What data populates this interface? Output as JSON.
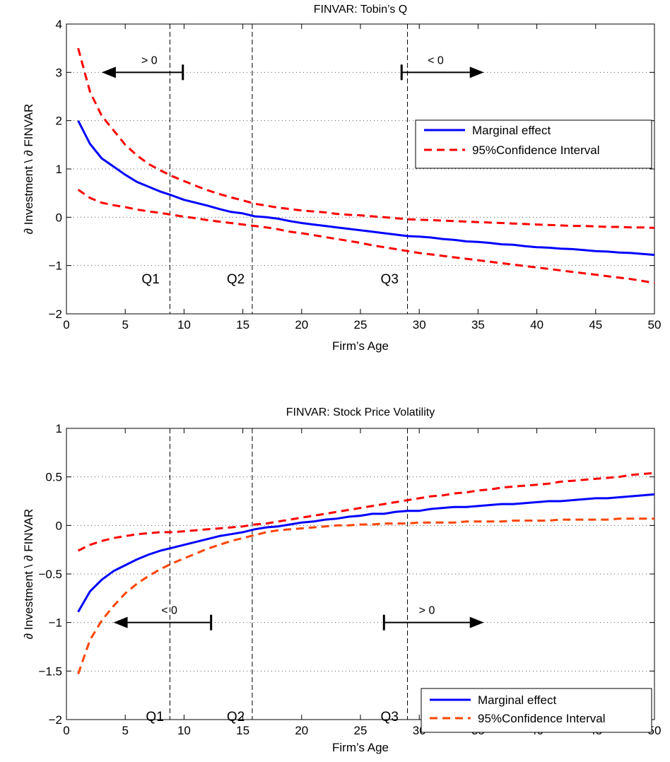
{
  "chart_data": [
    {
      "type": "line",
      "title": "FINVAR: Tobin’s Q",
      "xlabel": "Firm’s Age",
      "ylabel": "∂ Investment \\ ∂ FINVAR",
      "xlim": [
        0,
        50
      ],
      "ylim": [
        -2,
        4
      ],
      "xticks": [
        0,
        5,
        10,
        15,
        20,
        25,
        30,
        35,
        40,
        45,
        50
      ],
      "yticks": [
        -2,
        -1,
        0,
        1,
        2,
        3,
        4
      ],
      "grid": "horizontal dotted",
      "legend_position": "right",
      "x": [
        1,
        2,
        3,
        4,
        5,
        6,
        7,
        8,
        9,
        10,
        11,
        12,
        13,
        14,
        15,
        16,
        17,
        18,
        19,
        20,
        21,
        22,
        23,
        24,
        25,
        26,
        27,
        28,
        29,
        30,
        31,
        32,
        33,
        34,
        35,
        36,
        37,
        38,
        39,
        40,
        41,
        42,
        43,
        44,
        45,
        46,
        47,
        48,
        49,
        50
      ],
      "series": [
        {
          "name": "Marginal effect",
          "color": "#0000ff",
          "dash": "solid",
          "values": [
            2.0,
            1.52,
            1.22,
            1.05,
            0.88,
            0.73,
            0.63,
            0.53,
            0.45,
            0.36,
            0.3,
            0.24,
            0.17,
            0.11,
            0.08,
            0.02,
            0.0,
            -0.03,
            -0.08,
            -0.12,
            -0.15,
            -0.18,
            -0.21,
            -0.24,
            -0.27,
            -0.3,
            -0.33,
            -0.36,
            -0.39,
            -0.4,
            -0.42,
            -0.45,
            -0.47,
            -0.5,
            -0.51,
            -0.53,
            -0.56,
            -0.57,
            -0.6,
            -0.62,
            -0.63,
            -0.65,
            -0.66,
            -0.68,
            -0.7,
            -0.71,
            -0.73,
            -0.74,
            -0.76,
            -0.78
          ]
        },
        {
          "name": "95%Confidence Interval",
          "color": "#ff0000",
          "dash": "dashed",
          "values": [
            3.5,
            2.6,
            2.1,
            1.8,
            1.5,
            1.28,
            1.1,
            0.97,
            0.85,
            0.75,
            0.65,
            0.56,
            0.48,
            0.41,
            0.35,
            0.28,
            0.24,
            0.2,
            0.17,
            0.14,
            0.12,
            0.1,
            0.07,
            0.05,
            0.04,
            0.02,
            0.0,
            -0.02,
            -0.04,
            -0.05,
            -0.06,
            -0.07,
            -0.08,
            -0.09,
            -0.1,
            -0.11,
            -0.12,
            -0.13,
            -0.14,
            -0.15,
            -0.16,
            -0.17,
            -0.18,
            -0.18,
            -0.19,
            -0.2,
            -0.2,
            -0.21,
            -0.21,
            -0.22
          ]
        },
        {
          "name": "",
          "color": "#ff0000",
          "dash": "dashed",
          "values": [
            0.57,
            0.4,
            0.3,
            0.25,
            0.21,
            0.16,
            0.12,
            0.09,
            0.05,
            0.01,
            -0.02,
            -0.06,
            -0.09,
            -0.12,
            -0.15,
            -0.18,
            -0.21,
            -0.25,
            -0.3,
            -0.33,
            -0.37,
            -0.41,
            -0.45,
            -0.49,
            -0.53,
            -0.58,
            -0.62,
            -0.66,
            -0.7,
            -0.74,
            -0.77,
            -0.8,
            -0.83,
            -0.86,
            -0.89,
            -0.92,
            -0.95,
            -0.98,
            -1.01,
            -1.04,
            -1.07,
            -1.1,
            -1.13,
            -1.16,
            -1.19,
            -1.22,
            -1.25,
            -1.28,
            -1.32,
            -1.36
          ]
        }
      ],
      "vlines": [
        {
          "x": 8.8,
          "label": "Q1"
        },
        {
          "x": 15.8,
          "label": "Q2"
        },
        {
          "x": 29.0,
          "label": "Q3"
        }
      ],
      "arrows": [
        {
          "label": "> 0",
          "y": 3.0,
          "bar_x": 9.9,
          "tip_x": 3.0
        },
        {
          "label": "< 0",
          "y": 3.0,
          "bar_x": 28.5,
          "tip_x": 35.5
        }
      ]
    },
    {
      "type": "line",
      "title": "FINVAR: Stock Price Volatility",
      "xlabel": "Firm’s Age",
      "ylabel": "∂ Investment \\ ∂ FINVAR",
      "xlim": [
        0,
        50
      ],
      "ylim": [
        -2,
        1
      ],
      "xticks": [
        0,
        5,
        10,
        15,
        20,
        25,
        30,
        35,
        40,
        45,
        50
      ],
      "yticks": [
        -2,
        -1.5,
        -1,
        -0.5,
        0,
        0.5,
        1
      ],
      "grid": "horizontal dotted",
      "legend_position": "bottom-right",
      "x": [
        1,
        2,
        3,
        4,
        5,
        6,
        7,
        8,
        9,
        10,
        11,
        12,
        13,
        14,
        15,
        16,
        17,
        18,
        19,
        20,
        21,
        22,
        23,
        24,
        25,
        26,
        27,
        28,
        29,
        30,
        31,
        32,
        33,
        34,
        35,
        36,
        37,
        38,
        39,
        40,
        41,
        42,
        43,
        44,
        45,
        46,
        47,
        48,
        49,
        50
      ],
      "series": [
        {
          "name": "Marginal effect",
          "color": "#0000ff",
          "dash": "solid",
          "values": [
            -0.89,
            -0.68,
            -0.56,
            -0.47,
            -0.41,
            -0.35,
            -0.3,
            -0.26,
            -0.23,
            -0.2,
            -0.17,
            -0.14,
            -0.11,
            -0.09,
            -0.07,
            -0.04,
            -0.02,
            -0.01,
            0.01,
            0.03,
            0.04,
            0.06,
            0.07,
            0.09,
            0.1,
            0.12,
            0.12,
            0.14,
            0.15,
            0.15,
            0.17,
            0.18,
            0.19,
            0.19,
            0.2,
            0.21,
            0.22,
            0.22,
            0.23,
            0.24,
            0.25,
            0.25,
            0.26,
            0.27,
            0.28,
            0.28,
            0.29,
            0.3,
            0.31,
            0.32
          ]
        },
        {
          "name": "",
          "color": "#ff0000",
          "dash": "dashed",
          "values": [
            -0.26,
            -0.2,
            -0.16,
            -0.13,
            -0.11,
            -0.09,
            -0.08,
            -0.07,
            -0.07,
            -0.06,
            -0.05,
            -0.04,
            -0.03,
            -0.02,
            -0.01,
            0.01,
            0.02,
            0.04,
            0.06,
            0.08,
            0.1,
            0.12,
            0.14,
            0.16,
            0.18,
            0.2,
            0.22,
            0.24,
            0.26,
            0.28,
            0.3,
            0.31,
            0.33,
            0.34,
            0.36,
            0.37,
            0.39,
            0.4,
            0.41,
            0.42,
            0.43,
            0.45,
            0.46,
            0.47,
            0.48,
            0.49,
            0.5,
            0.52,
            0.53,
            0.54
          ]
        },
        {
          "name": "95%Confidence Interval",
          "color": "#ff4400",
          "dash": "dashed",
          "values": [
            -1.53,
            -1.18,
            -0.98,
            -0.83,
            -0.7,
            -0.6,
            -0.52,
            -0.45,
            -0.39,
            -0.34,
            -0.29,
            -0.24,
            -0.2,
            -0.16,
            -0.13,
            -0.1,
            -0.07,
            -0.05,
            -0.04,
            -0.03,
            -0.02,
            -0.01,
            0.0,
            0.0,
            0.01,
            0.01,
            0.02,
            0.02,
            0.02,
            0.03,
            0.03,
            0.03,
            0.03,
            0.04,
            0.04,
            0.04,
            0.04,
            0.05,
            0.05,
            0.05,
            0.05,
            0.06,
            0.06,
            0.06,
            0.06,
            0.06,
            0.07,
            0.07,
            0.07,
            0.07
          ]
        }
      ],
      "vlines": [
        {
          "x": 8.8,
          "label": "Q1"
        },
        {
          "x": 15.8,
          "label": "Q2"
        },
        {
          "x": 29.0,
          "label": "Q3"
        }
      ],
      "arrows": [
        {
          "label": "< 0",
          "y": -1.0,
          "bar_x": 12.3,
          "tip_x": 4.0
        },
        {
          "label": "> 0",
          "y": -1.0,
          "bar_x": 27.0,
          "tip_x": 35.5
        }
      ]
    }
  ]
}
